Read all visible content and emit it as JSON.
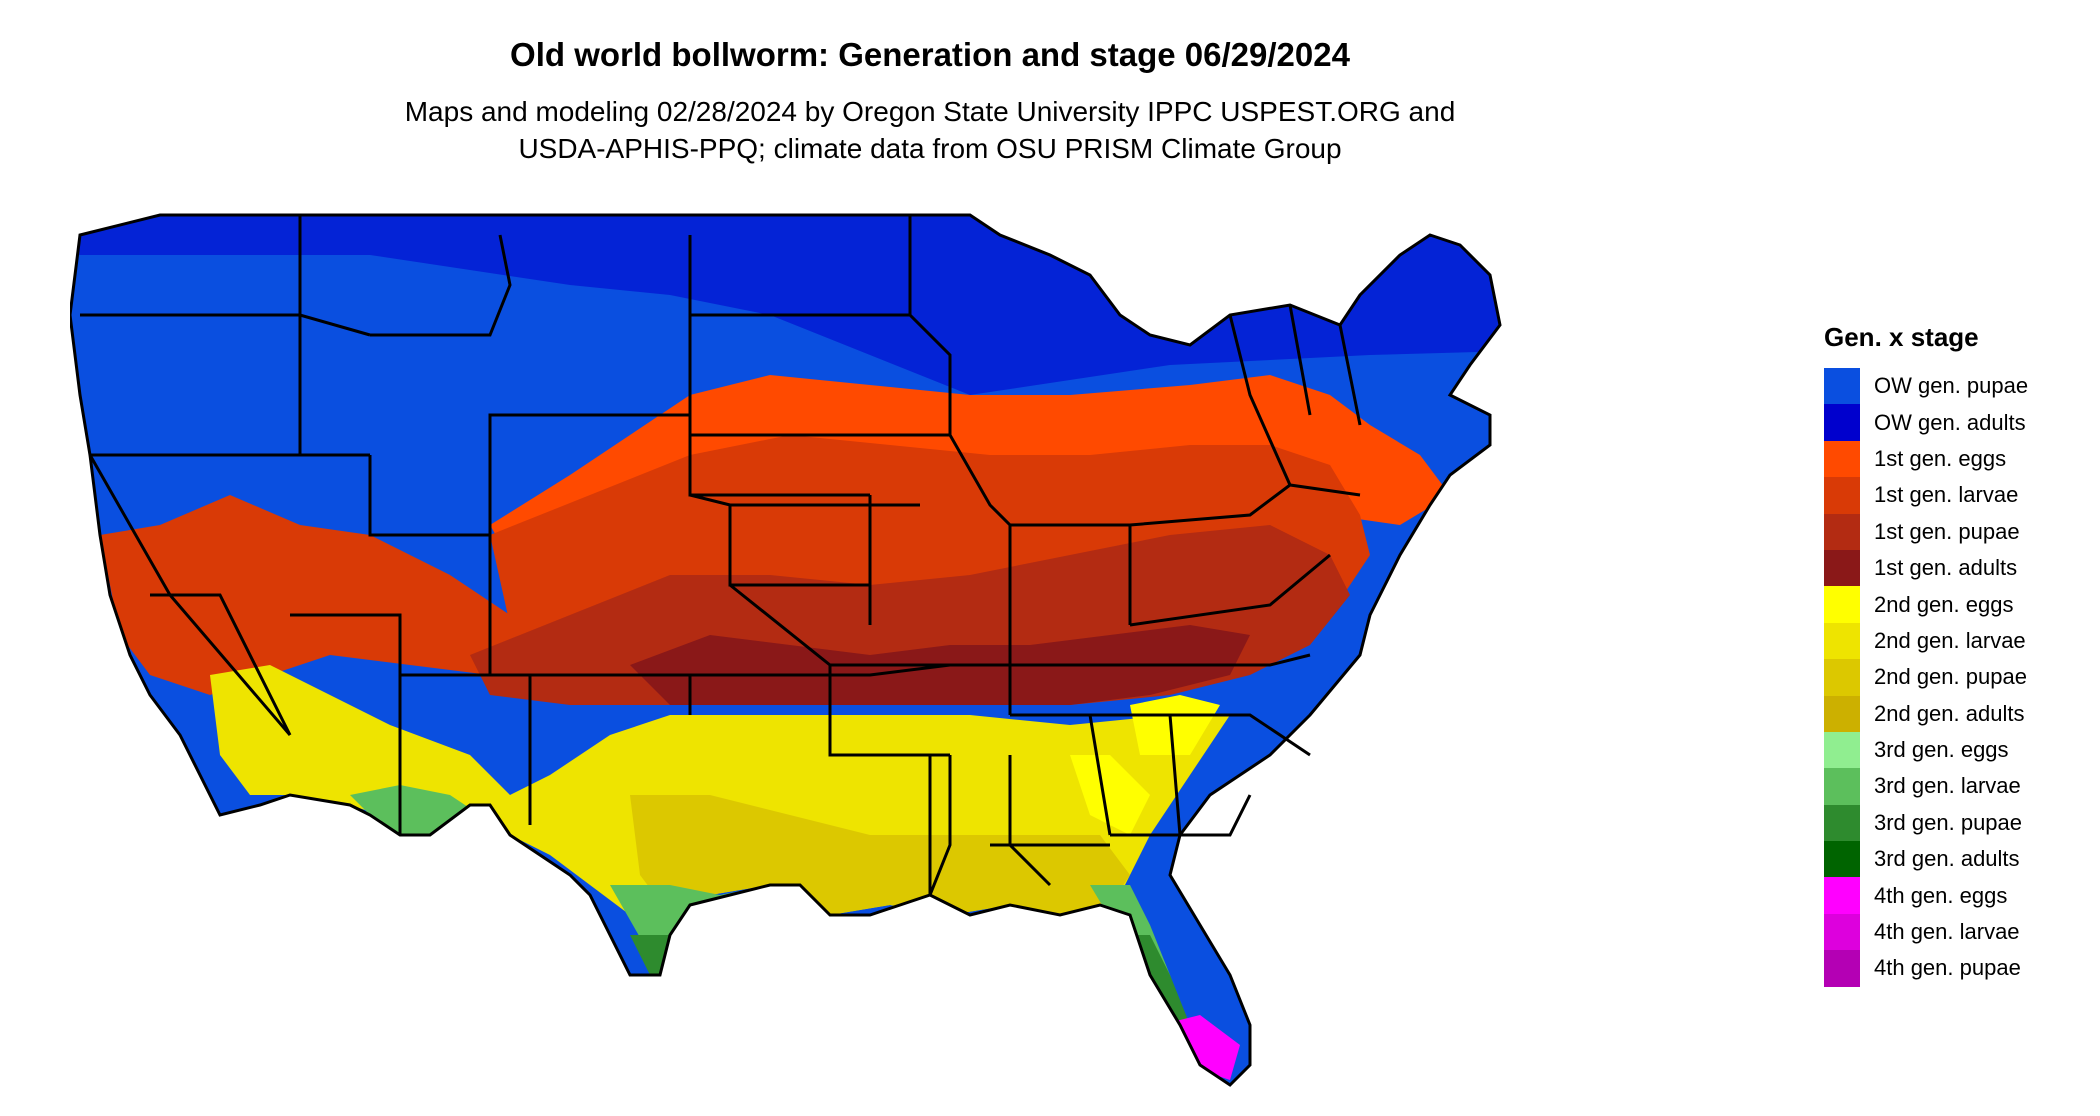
{
  "title": "Old world bollworm: Generation and stage 06/29/2024",
  "subtitle_lines": [
    "Maps and modeling 02/28/2024 by Oregon State University IPPC USPEST.ORG and",
    "USDA-APHIS-PPQ; climate data from OSU PRISM Climate Group"
  ],
  "legend": {
    "title": "Gen. x stage",
    "items": [
      {
        "label": "OW gen. pupae",
        "color": "#0a4fe0"
      },
      {
        "label": "OW gen. adults",
        "color": "#0000cd"
      },
      {
        "label": "1st gen. eggs",
        "color": "#ff4a00"
      },
      {
        "label": "1st gen. larvae",
        "color": "#d93a06"
      },
      {
        "label": "1st gen. pupae",
        "color": "#b32b12"
      },
      {
        "label": "1st gen. adults",
        "color": "#8a1818"
      },
      {
        "label": "2nd gen. eggs",
        "color": "#ffff00"
      },
      {
        "label": "2nd gen. larvae",
        "color": "#eee400"
      },
      {
        "label": "2nd gen. pupae",
        "color": "#dcc800"
      },
      {
        "label": "2nd gen. adults",
        "color": "#ccb000"
      },
      {
        "label": "3rd gen. eggs",
        "color": "#90ee90"
      },
      {
        "label": "3rd gen. larvae",
        "color": "#5cbf5c"
      },
      {
        "label": "3rd gen. pupae",
        "color": "#2e8b2e"
      },
      {
        "label": "3rd gen. adults",
        "color": "#006400"
      },
      {
        "label": "4th gen. eggs",
        "color": "#ff00ff"
      },
      {
        "label": "4th gen. larvae",
        "color": "#dd00dd"
      },
      {
        "label": "4th gen. pupae",
        "color": "#b400b4"
      }
    ]
  }
}
